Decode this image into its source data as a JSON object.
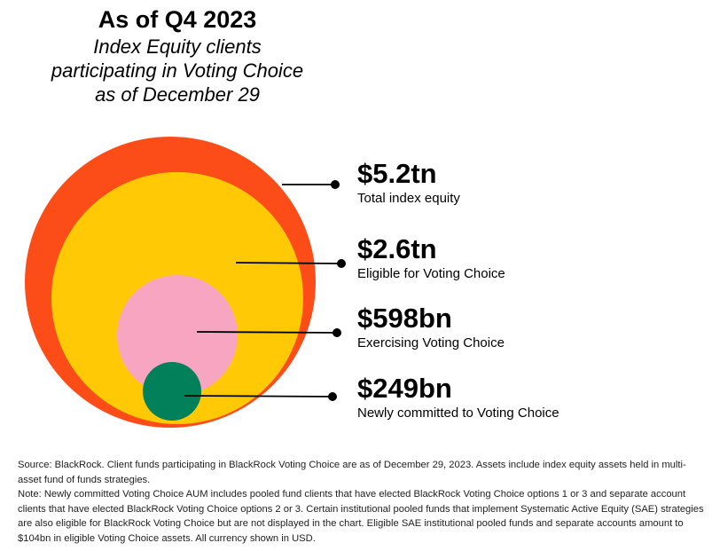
{
  "header": {
    "title": "As of Q4 2023",
    "subtitle_lines": [
      "Index Equity clients",
      "participating in Voting Choice",
      "as of December 29"
    ]
  },
  "chart_data": {
    "type": "nested-bubble",
    "title": "As of Q4 2023",
    "subtitle": "Index Equity clients participating in Voting Choice as of December 29",
    "series": [
      {
        "label": "$5.2tn",
        "description": "Total index equity",
        "value": 5200,
        "unit": "bn USD",
        "color": "#fc4c17"
      },
      {
        "label": "$2.6tn",
        "description": "Eligible for Voting Choice",
        "value": 2600,
        "unit": "bn USD",
        "color": "#ffca05"
      },
      {
        "label": "$598bn",
        "description": "Exercising Voting Choice",
        "value": 598,
        "unit": "bn USD",
        "color": "#f8a5c1"
      },
      {
        "label": "$249bn",
        "description": "Newly committed to Voting Choice",
        "value": 249,
        "unit": "bn USD",
        "color": "#02805a"
      }
    ]
  },
  "footnotes": {
    "source": "Source: BlackRock. Client funds participating in BlackRock Voting Choice are as of December 29, 2023. Assets include index equity assets held in multi-asset fund of funds strategies.",
    "note": "Note: Newly committed Voting Choice AUM includes pooled fund clients that have elected BlackRock Voting Choice options 1 or 3 and separate account clients that have elected BlackRock Voting Choice options 2 or 3. Certain institutional pooled funds that implement Systematic Active Equity (SAE) strategies are also eligible for BlackRock Voting Choice but are not displayed in the chart. Eligible SAE institutional pooled funds and separate accounts amount to $104bn in eligible Voting Choice assets. All currency shown in USD."
  }
}
